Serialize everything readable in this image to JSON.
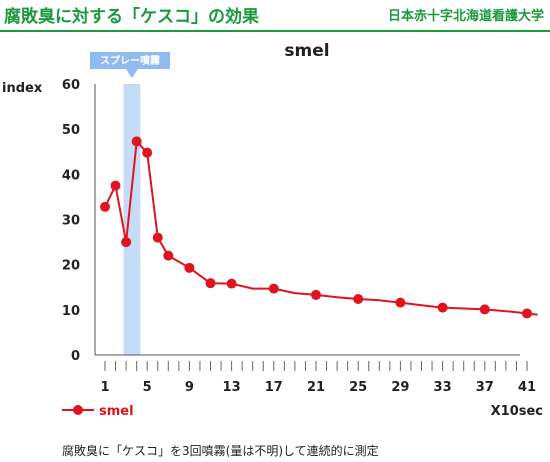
{
  "header": {
    "title": "腐敗臭に対する「ケスコ」の効果",
    "organization": "日本赤十字北海道看護大学"
  },
  "caption": "腐敗臭に「ケスコ」を3回噴霧(量は不明)して連続的に測定",
  "chart_data": {
    "type": "line",
    "title": "smel",
    "ylabel": "index",
    "xlabel": "X10sec",
    "ylim": [
      0,
      60
    ],
    "yticks": [
      0,
      10,
      20,
      30,
      40,
      50,
      60
    ],
    "xlim": [
      0,
      42
    ],
    "xticks": [
      1,
      5,
      9,
      13,
      17,
      21,
      25,
      29,
      33,
      37,
      41
    ],
    "grid": false,
    "legend": "bottom-left",
    "colors": {
      "series": "#e0141e",
      "spray_band": "#c5dcf7",
      "spray_label_bg": "#8fbbf0",
      "accent": "#1a9a3c"
    },
    "annotation": {
      "label": "スプレー噴霧",
      "x_start": 2.75,
      "x_end": 4.35
    },
    "series": [
      {
        "name": "smel",
        "x": [
          1,
          2,
          3,
          4,
          5,
          6,
          7,
          9,
          11,
          13,
          15,
          17,
          19,
          21,
          23,
          25,
          27,
          29,
          31,
          33,
          35,
          37,
          39,
          41,
          42
        ],
        "y": [
          32.8,
          37.5,
          25,
          47.3,
          44.8,
          26,
          22,
          19.3,
          15.9,
          15.8,
          14.7,
          14.7,
          13.7,
          13.3,
          12.8,
          12.4,
          12.1,
          11.6,
          11.0,
          10.5,
          10.3,
          10.1,
          9.7,
          9.2,
          8.9
        ],
        "markers": [
          true,
          true,
          true,
          true,
          true,
          true,
          true,
          true,
          true,
          true,
          false,
          true,
          false,
          true,
          false,
          true,
          false,
          true,
          false,
          true,
          false,
          true,
          false,
          true,
          false
        ]
      }
    ]
  }
}
